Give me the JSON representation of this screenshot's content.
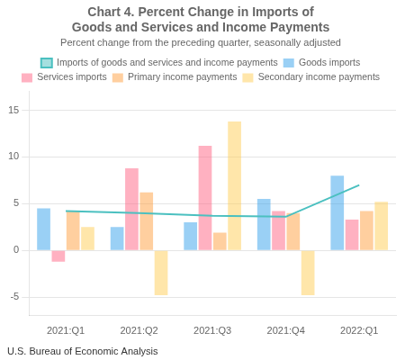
{
  "chart_data": {
    "type": "bar",
    "title": "Chart 4. Percent Change in Imports of\nGoods and Services and Income Payments",
    "subtitle": "Percent change from the preceding quarter, seasonally adjusted",
    "annotations": [
      "U.S. Bureau of Economic Analysis"
    ],
    "categories": [
      "2021:Q1",
      "2021:Q2",
      "2021:Q3",
      "2021:Q4",
      "2022:Q1"
    ],
    "series": [
      {
        "name": "Goods imports",
        "type": "bar",
        "values": [
          4.5,
          2.5,
          3.0,
          5.5,
          8.0
        ]
      },
      {
        "name": "Services imports",
        "type": "bar",
        "values": [
          -1.2,
          8.8,
          11.2,
          4.2,
          3.3
        ]
      },
      {
        "name": "Primary income payments",
        "type": "bar",
        "values": [
          4.2,
          6.2,
          1.9,
          4.0,
          4.2
        ]
      },
      {
        "name": "Secondary income payments",
        "type": "bar",
        "values": [
          2.5,
          -4.8,
          13.8,
          -4.8,
          5.2
        ]
      },
      {
        "name": "Imports of goods and services and income payments",
        "type": "line",
        "values": [
          4.2,
          4.0,
          3.7,
          3.6,
          7.0
        ]
      }
    ],
    "ylim": [
      -7,
      17
    ],
    "yticks": [
      -5,
      0,
      5,
      10,
      15
    ],
    "grid": "y",
    "legend": "top"
  }
}
